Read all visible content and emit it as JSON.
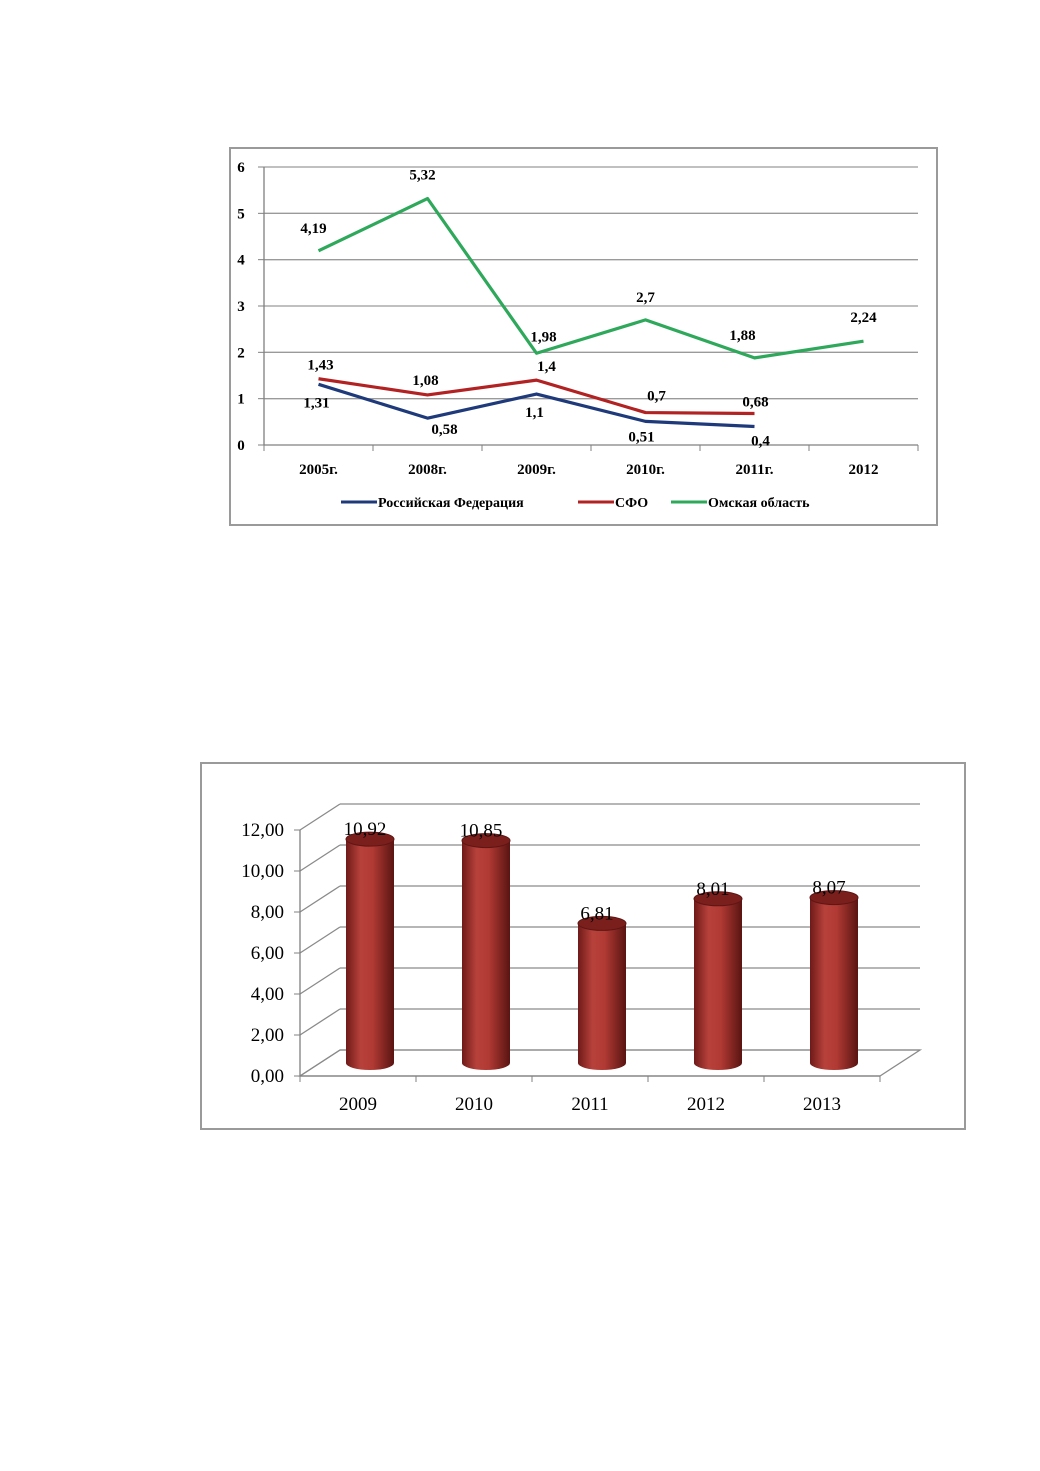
{
  "chart_data": [
    {
      "type": "line",
      "categories": [
        "2005г.",
        "2008г.",
        "2009г.",
        "2010г.",
        "2011г.",
        "2012"
      ],
      "ylim": [
        0,
        6
      ],
      "yticks": [
        "0",
        "1",
        "2",
        "3",
        "4",
        "5",
        "6"
      ],
      "grid": true,
      "legend_position": "bottom",
      "series": [
        {
          "name": "Российская Федерация",
          "color": "#1f3a7a",
          "values": [
            1.31,
            0.58,
            1.1,
            0.51,
            0.4,
            null
          ],
          "labels": [
            "1,31",
            "0,58",
            "1,1",
            "0,51",
            "0,4",
            ""
          ]
        },
        {
          "name": "СФО",
          "color": "#b22222",
          "values": [
            1.43,
            1.08,
            1.4,
            0.7,
            0.68,
            null
          ],
          "labels": [
            "1,43",
            "1,08",
            "1,4",
            "0,7",
            "0,68",
            ""
          ]
        },
        {
          "name": "Омская область",
          "color": "#2ea85a",
          "values": [
            4.19,
            5.32,
            1.98,
            2.7,
            1.88,
            2.24
          ],
          "labels": [
            "4,19",
            "5,32",
            "1,98",
            "2,7",
            "1,88",
            "2,24"
          ]
        }
      ]
    },
    {
      "type": "bar",
      "style": "3d-cylinder",
      "categories": [
        "2009",
        "2010",
        "2011",
        "2012",
        "2013"
      ],
      "values": [
        10.92,
        10.85,
        6.81,
        8.01,
        8.07
      ],
      "labels": [
        "10,92",
        "10,85",
        "6,81",
        "8,01",
        "8,07"
      ],
      "ylim": [
        0,
        12
      ],
      "yticks": [
        "0,00",
        "2,00",
        "4,00",
        "6,00",
        "8,00",
        "10,00",
        "12,00"
      ],
      "grid": true,
      "bar_color": "#a8302c"
    }
  ]
}
